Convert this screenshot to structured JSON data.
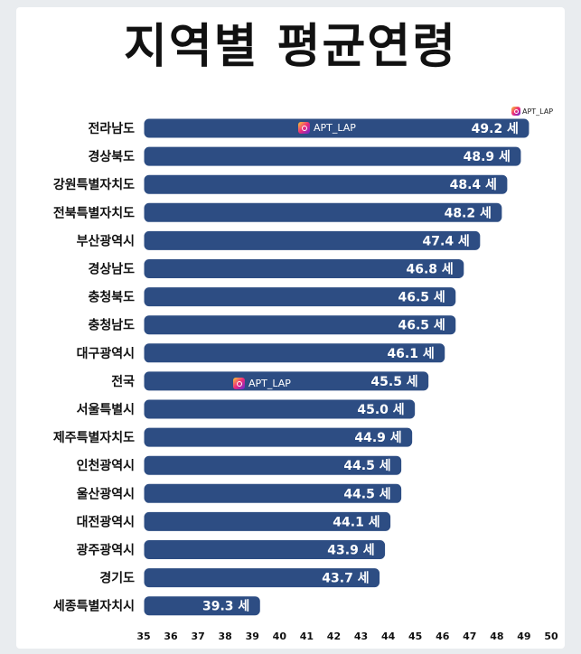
{
  "chart_data": {
    "type": "bar",
    "orientation": "horizontal",
    "title": "지역별 평균연령",
    "categories": [
      "전라남도",
      "경상북도",
      "강원특별자치도",
      "전북특별자치도",
      "부산광역시",
      "경상남도",
      "충청북도",
      "충청남도",
      "대구광역시",
      "전국",
      "서울특별시",
      "제주특별자치도",
      "인천광역시",
      "울산광역시",
      "대전광역시",
      "광주광역시",
      "경기도",
      "세종특별자치시"
    ],
    "values": [
      49.2,
      48.9,
      48.4,
      48.2,
      47.4,
      46.8,
      46.5,
      46.5,
      46.1,
      45.5,
      45.0,
      44.9,
      44.5,
      44.5,
      44.1,
      43.9,
      43.7,
      39.3
    ],
    "value_labels": [
      "49.2 세",
      "48.9 세",
      "48.4 세",
      "48.2 세",
      "47.4 세",
      "46.8 세",
      "46.5 세",
      "46.5 세",
      "46.1 세",
      "45.5 세",
      "45.0 세",
      "44.9 세",
      "44.5 세",
      "44.5 세",
      "44.1 세",
      "43.9 세",
      "43.7 세",
      "39.3 세"
    ],
    "xlim": [
      35,
      50
    ],
    "xticks": [
      35,
      36,
      37,
      38,
      39,
      40,
      41,
      42,
      43,
      44,
      45,
      46,
      47,
      48,
      49,
      50
    ],
    "bar_color": "#2d4d83",
    "grid": false
  },
  "watermark": {
    "text": "APT_LAP"
  }
}
